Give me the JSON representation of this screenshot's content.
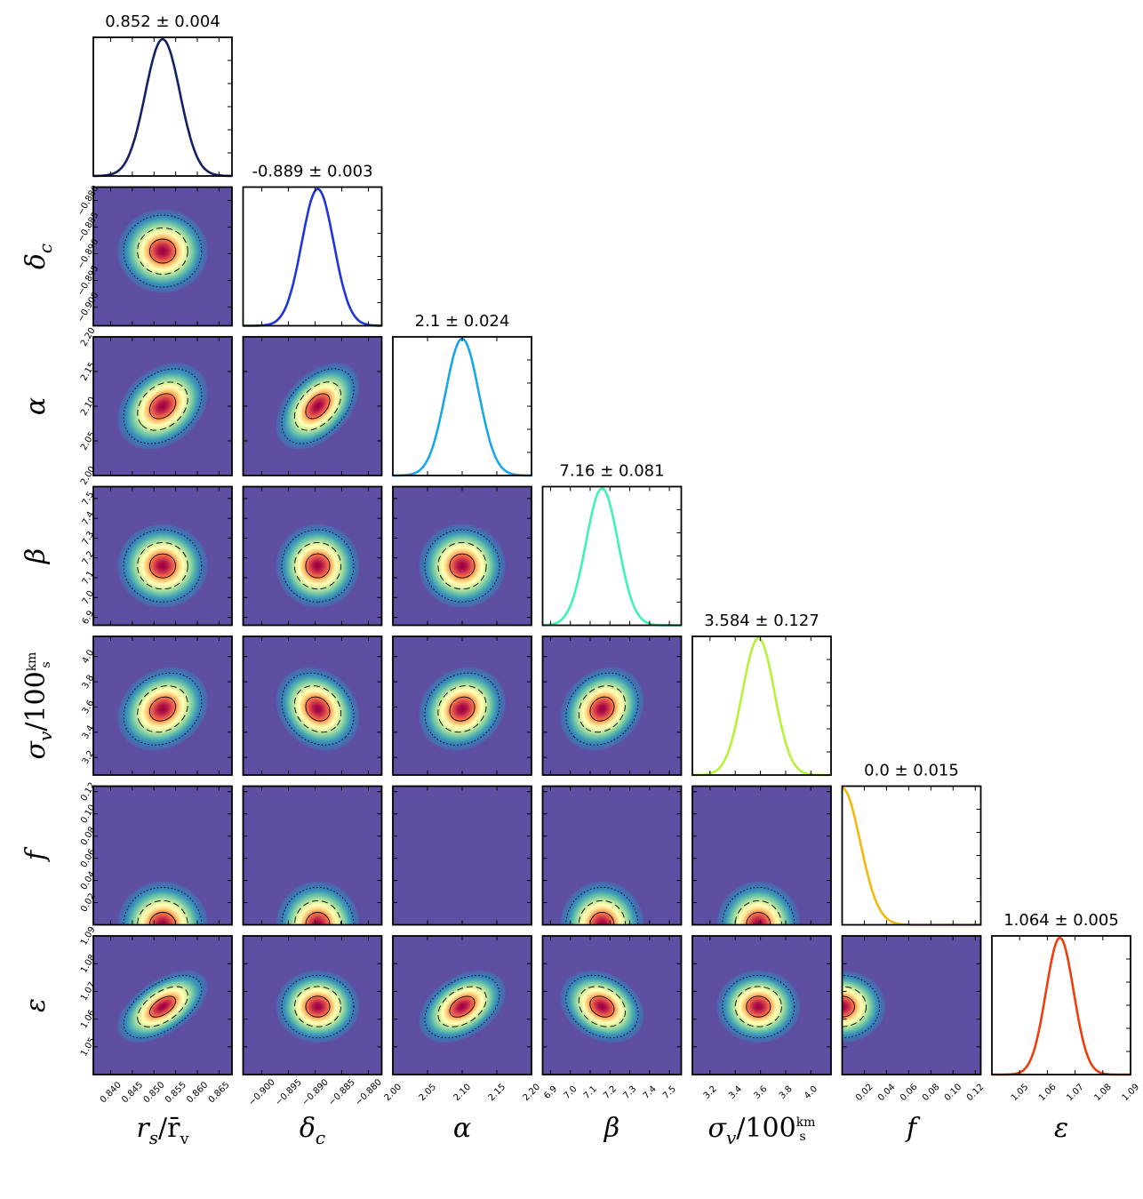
{
  "chart_data": {
    "type": "corner",
    "colors": {
      "background": "#5e4fa2",
      "colormap": [
        "#5e4fa2",
        "#3288bd",
        "#66c2a5",
        "#abdda4",
        "#e6f598",
        "#ffffbf",
        "#fee08b",
        "#fdae61",
        "#f46d43",
        "#d53e4f",
        "#9e0142"
      ],
      "contour": "#000000"
    },
    "parameters": [
      {
        "key": "rs",
        "label_main": "r",
        "label_sub": "s",
        "label_rest": "/r̄",
        "label_rest_sub": "v",
        "title": "0.852 ± 0.004",
        "mean": 0.852,
        "std": 0.004,
        "range": [
          0.836,
          0.868
        ],
        "ticks": [
          0.84,
          0.845,
          0.85,
          0.855,
          0.86,
          0.865
        ],
        "tick_labels": [
          "0.840",
          "0.845",
          "0.850",
          "0.855",
          "0.860",
          "0.865"
        ],
        "line_color": "#142066"
      },
      {
        "key": "dc",
        "label_main": "δ",
        "label_sub": "c",
        "title": "-0.889 ± 0.003",
        "mean": -0.8895,
        "std": 0.003,
        "range": [
          -0.9035,
          -0.8775
        ],
        "ticks": [
          -0.9,
          -0.895,
          -0.89,
          -0.885,
          -0.88
        ],
        "tick_labels": [
          "−0.900",
          "−0.895",
          "−0.890",
          "−0.885",
          "−0.880"
        ],
        "line_color": "#1d36d9"
      },
      {
        "key": "alpha",
        "label_main": "α",
        "title": "2.1 ± 0.024",
        "mean": 2.1,
        "std": 0.024,
        "range": [
          2.0,
          2.2
        ],
        "ticks": [
          2.0,
          2.05,
          2.1,
          2.15,
          2.2
        ],
        "tick_labels": [
          "2.00",
          "2.05",
          "2.10",
          "2.15",
          "2.20"
        ],
        "line_color": "#1aa6e6"
      },
      {
        "key": "beta",
        "label_main": "β",
        "title": "7.16 ± 0.081",
        "mean": 7.16,
        "std": 0.081,
        "range": [
          6.86,
          7.56
        ],
        "ticks": [
          6.9,
          7.0,
          7.1,
          7.2,
          7.3,
          7.4,
          7.5
        ],
        "tick_labels": [
          "6.9",
          "7.0",
          "7.1",
          "7.2",
          "7.3",
          "7.4",
          "7.5"
        ],
        "line_color": "#3ff2b8"
      },
      {
        "key": "sigma",
        "label_main": "σ",
        "label_sub": "v",
        "label_rest": "/100",
        "frac_num": "km",
        "frac_den": "s",
        "title": "3.584 ± 0.127",
        "mean": 3.584,
        "std": 0.127,
        "range": [
          3.06,
          4.16
        ],
        "ticks": [
          3.2,
          3.4,
          3.6,
          3.8,
          4.0
        ],
        "tick_labels": [
          "3.2",
          "3.4",
          "3.6",
          "3.8",
          "4.0"
        ],
        "line_color": "#b5f23a"
      },
      {
        "key": "f",
        "label_main": "f",
        "title": "0.0 ± 0.015",
        "mean": 0.0,
        "std": 0.015,
        "range": [
          0.0,
          0.125
        ],
        "ticks": [
          0.02,
          0.04,
          0.06,
          0.08,
          0.1,
          0.12
        ],
        "tick_labels": [
          "0.02",
          "0.04",
          "0.06",
          "0.08",
          "0.10",
          "0.12"
        ],
        "line_color": "#f2b90d"
      },
      {
        "key": "eps",
        "label_main": "ε",
        "title": "1.064 ± 0.005",
        "mean": 1.0645,
        "std": 0.005,
        "range": [
          1.04,
          1.09
        ],
        "ticks": [
          1.05,
          1.06,
          1.07,
          1.08,
          1.09
        ],
        "tick_labels": [
          "1.05",
          "1.06",
          "1.07",
          "1.08",
          "1.09"
        ],
        "line_color": "#f03c0a"
      }
    ],
    "correlations": [
      [
        1.0,
        0.0,
        0.3,
        0.0,
        0.2,
        0.0,
        0.55
      ],
      [
        0.0,
        1.0,
        0.45,
        0.0,
        -0.2,
        0.0,
        0.0
      ],
      [
        0.3,
        0.45,
        1.0,
        0.0,
        0.15,
        0.0,
        0.4
      ],
      [
        0.0,
        0.0,
        0.0,
        1.0,
        0.2,
        0.0,
        -0.25
      ],
      [
        0.2,
        -0.2,
        0.15,
        0.2,
        1.0,
        0.0,
        0.0
      ],
      [
        0.0,
        0.0,
        0.0,
        0.0,
        0.0,
        1.0,
        0.0
      ],
      [
        0.55,
        0.0,
        0.4,
        -0.25,
        0.0,
        0.0,
        1.0
      ]
    ],
    "contour_levels_sigma": [
      0.5,
      1.0,
      1.5
    ]
  }
}
